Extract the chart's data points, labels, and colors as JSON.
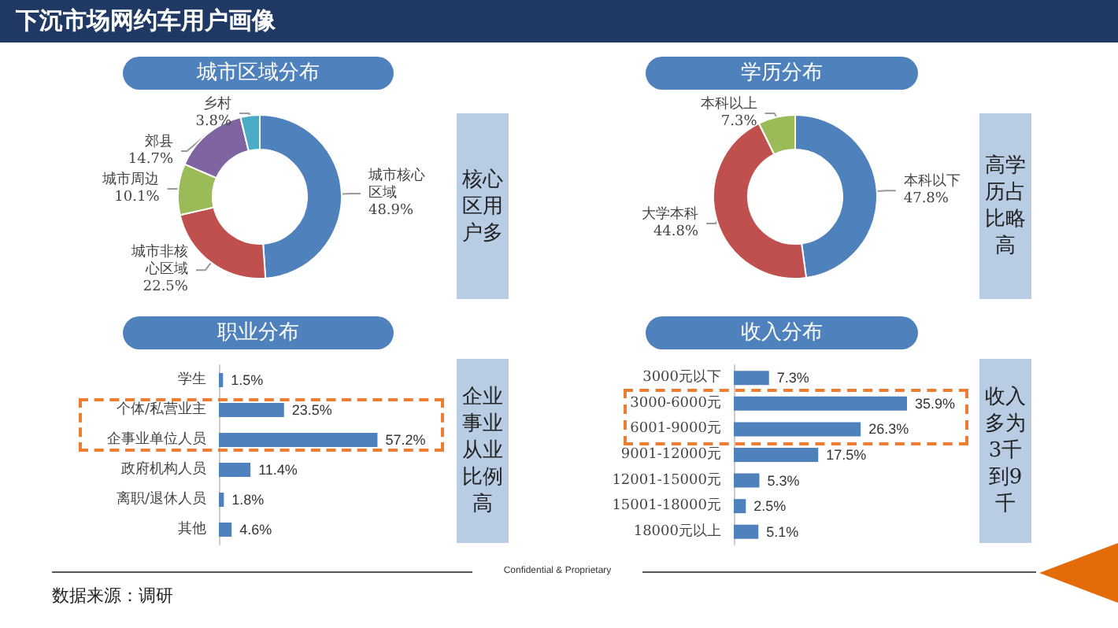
{
  "chart_data": [
    {
      "type": "other",
      "title": "下沉市场网约车用户画像",
      "annotations": [
        "Confidential & Proprietary",
        "数据来源：调研"
      ]
    },
    {
      "type": "donut",
      "title": "城市区域分布",
      "categories": [
        "城市核心区域",
        "城市非核心区域",
        "城市周边",
        "郊县",
        "乡村"
      ],
      "values": [
        48.9,
        22.5,
        10.1,
        14.7,
        3.8
      ],
      "value_labels": [
        "48.9%",
        "22.5%",
        "10.1%",
        "14.7%",
        "3.8%"
      ],
      "colors": [
        "#4f81bd",
        "#c0504d",
        "#9bbb59",
        "#8064a2",
        "#4bacc6"
      ]
    },
    {
      "type": "other",
      "title": "核心区用户多"
    },
    {
      "type": "donut",
      "title": "学历分布",
      "categories": [
        "本科以下",
        "大学本科",
        "本科以上"
      ],
      "values": [
        47.8,
        44.8,
        7.3
      ],
      "value_labels": [
        "47.8%",
        "44.8%",
        "7.3%"
      ],
      "colors": [
        "#4f81bd",
        "#c0504d",
        "#9bbb59"
      ]
    },
    {
      "type": "other",
      "title": "高学历占比略高"
    },
    {
      "type": "bar",
      "title": "职业分布",
      "orientation": "horizontal",
      "categories": [
        "学生",
        "个体/私营业主",
        "企事业单位人员",
        "政府机构人员",
        "离职/退休人员",
        "其他"
      ],
      "values": [
        1.5,
        23.5,
        57.2,
        11.4,
        1.8,
        4.6
      ],
      "value_labels": [
        "1.5%",
        "23.5%",
        "57.2%",
        "11.4%",
        "1.8%",
        "4.6%"
      ],
      "color": "#4f81bd"
    },
    {
      "type": "other",
      "title": "企业事业从业比例高"
    },
    {
      "type": "bar",
      "title": "收入分布",
      "orientation": "horizontal",
      "categories": [
        "3000元以下",
        "3000-6000元",
        "6001-9000元",
        "9001-12000元",
        "12001-15000元",
        "15001-18000元",
        "18000元以上"
      ],
      "values": [
        7.3,
        35.9,
        26.3,
        17.5,
        5.3,
        2.5,
        5.1
      ],
      "value_labels": [
        "7.3%",
        "35.9%",
        "26.3%",
        "17.5%",
        "5.3%",
        "2.5%",
        "5.1%"
      ],
      "color": "#4f81bd"
    },
    {
      "type": "other",
      "title": "收入多为3千到9千"
    }
  ]
}
